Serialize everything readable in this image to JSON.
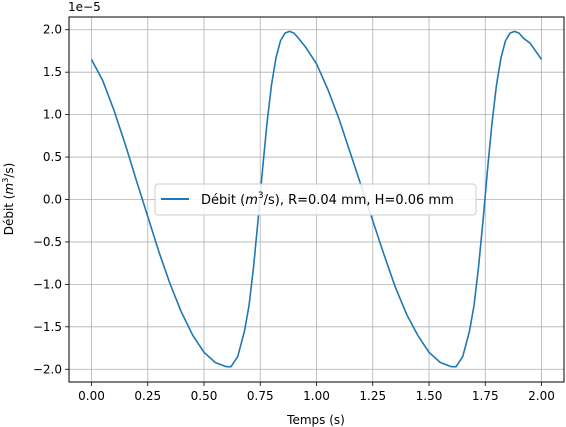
{
  "chart_data": {
    "type": "line",
    "xlabel": "Temps (s)",
    "ylabel_prefix": "Débit (",
    "ylabel_var": "m",
    "ylabel_exp": "3",
    "ylabel_suffix": "/s)",
    "offset_text": "1e−5",
    "xlim": [
      -0.1,
      2.1
    ],
    "ylim": [
      -2.15,
      2.15
    ],
    "y_scale_factor": 1e-05,
    "x_ticks": [
      0.0,
      0.25,
      0.5,
      0.75,
      1.0,
      1.25,
      1.5,
      1.75,
      2.0
    ],
    "x_tick_labels": [
      "0.00",
      "0.25",
      "0.50",
      "0.75",
      "1.00",
      "1.25",
      "1.50",
      "1.75",
      "2.00"
    ],
    "y_ticks": [
      -2.0,
      -1.5,
      -1.0,
      -0.5,
      0.0,
      0.5,
      1.0,
      1.5,
      2.0
    ],
    "y_tick_labels": [
      "−2.0",
      "−1.5",
      "−1.0",
      "−0.5",
      "0.0",
      "0.5",
      "1.0",
      "1.5",
      "2.0"
    ],
    "grid": true,
    "legend_position": "center",
    "series": [
      {
        "name_prefix": "Débit (",
        "name_var": "m",
        "name_exp": "3",
        "name_suffix": "/s), R=0.04 mm, H=0.06 mm",
        "color": "#1f77b4",
        "x": [
          0.0,
          0.05,
          0.1,
          0.15,
          0.2,
          0.25,
          0.3,
          0.35,
          0.4,
          0.45,
          0.5,
          0.55,
          0.6,
          0.62,
          0.65,
          0.68,
          0.7,
          0.72,
          0.74,
          0.76,
          0.78,
          0.8,
          0.82,
          0.84,
          0.86,
          0.88,
          0.9,
          0.92,
          0.95,
          1.0,
          1.05,
          1.1,
          1.15,
          1.2,
          1.25,
          1.3,
          1.35,
          1.4,
          1.45,
          1.5,
          1.55,
          1.6,
          1.62,
          1.65,
          1.68,
          1.7,
          1.72,
          1.74,
          1.76,
          1.78,
          1.8,
          1.82,
          1.84,
          1.86,
          1.88,
          1.9,
          1.92,
          1.95,
          2.0
        ],
        "y": [
          1.65,
          1.4,
          1.05,
          0.65,
          0.22,
          -0.2,
          -0.62,
          -1.0,
          -1.33,
          -1.6,
          -1.8,
          -1.92,
          -1.97,
          -1.97,
          -1.85,
          -1.55,
          -1.25,
          -0.8,
          -0.25,
          0.35,
          0.9,
          1.35,
          1.67,
          1.87,
          1.96,
          1.98,
          1.96,
          1.9,
          1.8,
          1.6,
          1.3,
          0.95,
          0.55,
          0.15,
          -0.25,
          -0.65,
          -1.03,
          -1.35,
          -1.6,
          -1.8,
          -1.92,
          -1.97,
          -1.97,
          -1.85,
          -1.55,
          -1.25,
          -0.8,
          -0.25,
          0.35,
          0.9,
          1.35,
          1.67,
          1.87,
          1.96,
          1.98,
          1.96,
          1.9,
          1.84,
          1.65
        ]
      }
    ]
  }
}
